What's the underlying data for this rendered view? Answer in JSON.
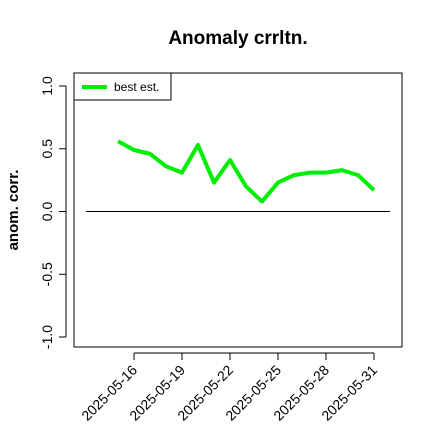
{
  "chart_data": {
    "type": "line",
    "title": "Anomaly crrltn.",
    "xlabel": "",
    "ylabel": "anom. corr.",
    "ylim": [
      -1.0,
      1.0
    ],
    "yticks": [
      -1.0,
      -0.5,
      0.0,
      0.5,
      1.0
    ],
    "ytick_labels": [
      "-1.0",
      "-0.5",
      "0.0",
      "0.5",
      "1.0"
    ],
    "xticks": [
      "2025-05-16",
      "2025-05-19",
      "2025-05-22",
      "2025-05-25",
      "2025-05-28",
      "2025-05-31"
    ],
    "xlim": [
      "2025-05-13",
      "2025-06-01"
    ],
    "grid": false,
    "legend_position": "top-left",
    "reference_line": 0.0,
    "reference_color": "#000000",
    "series": [
      {
        "name": "best est.",
        "color": "#00ee00",
        "x": [
          "2025-05-15",
          "2025-05-16",
          "2025-05-17",
          "2025-05-18",
          "2025-05-19",
          "2025-05-20",
          "2025-05-21",
          "2025-05-22",
          "2025-05-23",
          "2025-05-24",
          "2025-05-25",
          "2025-05-26",
          "2025-05-27",
          "2025-05-28",
          "2025-05-29",
          "2025-05-30",
          "2025-05-31"
        ],
        "values": [
          0.56,
          0.49,
          0.46,
          0.36,
          0.31,
          0.53,
          0.23,
          0.41,
          0.2,
          0.08,
          0.23,
          0.29,
          0.31,
          0.31,
          0.33,
          0.29,
          0.17
        ]
      }
    ]
  }
}
